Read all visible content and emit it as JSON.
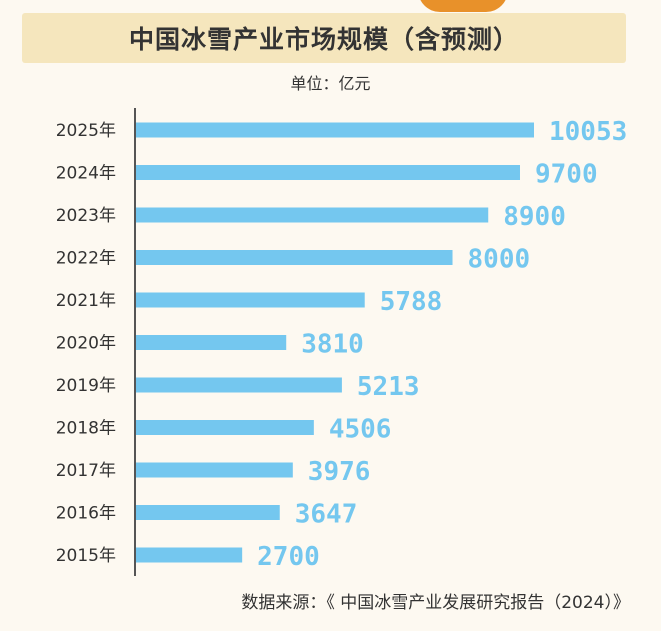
{
  "chart_data": {
    "type": "bar",
    "orientation": "horizontal",
    "title": "中国冰雪产业市场规模（含预测）",
    "unit_label": "单位：亿元",
    "categories": [
      "2025年",
      "2024年",
      "2023年",
      "2022年",
      "2021年",
      "2020年",
      "2019年",
      "2018年",
      "2017年",
      "2016年",
      "2015年"
    ],
    "values": [
      10053,
      9700,
      8900,
      8000,
      5788,
      3810,
      5213,
      4506,
      3976,
      3647,
      2700
    ],
    "value_labels": [
      "10053",
      "9700",
      "8900",
      "8000",
      "5788",
      "3810",
      "5213",
      "4506",
      "3976",
      "3647",
      "2700"
    ],
    "xlim": [
      0,
      10053
    ],
    "source": "数据来源：《 中国冰雪产业发展研究报告（2024）》",
    "colors": {
      "bar": "#74c7ef",
      "label": "#74c7ef",
      "axis": "#555555",
      "title_band": "#f5e6bd"
    }
  }
}
